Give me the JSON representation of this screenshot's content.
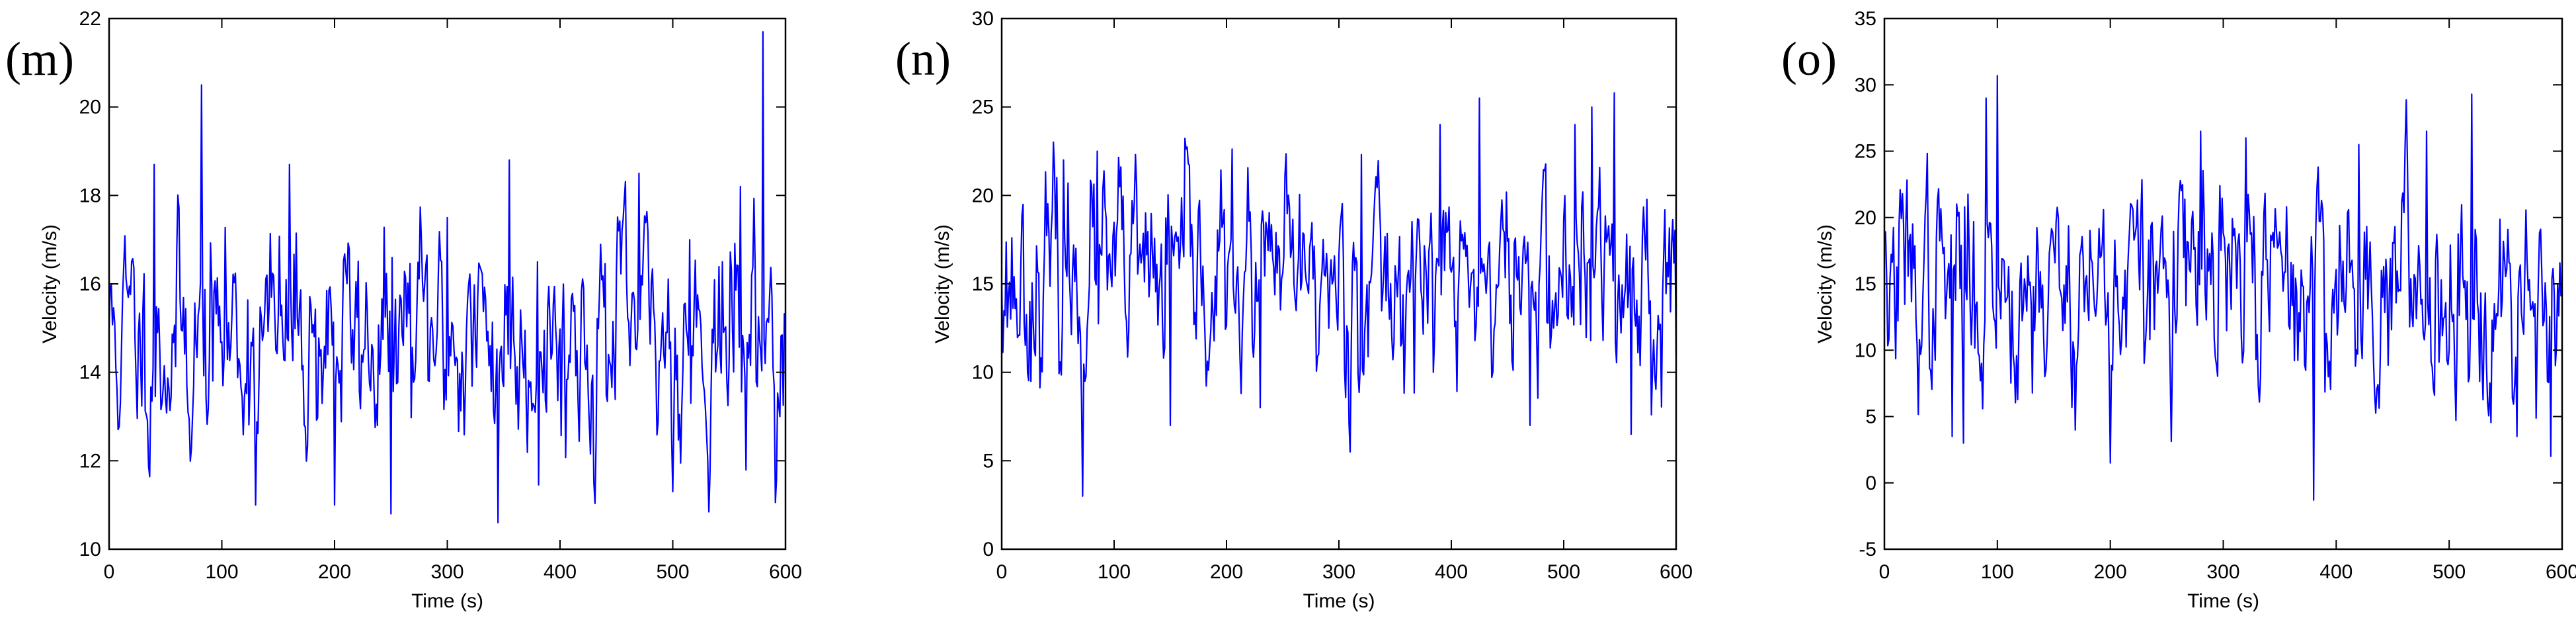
{
  "chart_data": [
    {
      "type": "line",
      "panel_label": "(m)",
      "xlabel": "Time (s)",
      "ylabel": "Velocity (m/s)",
      "xlim": [
        0,
        600
      ],
      "ylim": [
        10,
        22
      ],
      "xticks": [
        0,
        100,
        200,
        300,
        400,
        500,
        600
      ],
      "yticks": [
        10,
        12,
        14,
        16,
        18,
        20,
        22
      ],
      "line_color": "#0000ff",
      "seed": 11,
      "x_step": 1,
      "series": [
        {
          "mean": 14.8,
          "std": 1.3,
          "x": [
            0,
            40,
            82,
            130,
            160,
            200,
            210,
            250,
            300,
            345,
            355,
            380,
            470,
            500,
            515,
            560,
            580,
            600
          ],
          "y": [
            15.0,
            18.7,
            20.5,
            11.0,
            18.7,
            11.0,
            16.3,
            10.8,
            17.5,
            10.6,
            18.8,
            16.5,
            18.5,
            11.3,
            17.0,
            18.2,
            21.7,
            15.0
          ]
        }
      ]
    },
    {
      "type": "line",
      "panel_label": "(n)",
      "xlabel": "Time (s)",
      "ylabel": "Velocity (m/s)",
      "xlim": [
        0,
        600
      ],
      "ylim": [
        0,
        30
      ],
      "xticks": [
        0,
        100,
        200,
        300,
        400,
        500,
        600
      ],
      "yticks": [
        0,
        5,
        10,
        15,
        20,
        25,
        30
      ],
      "line_color": "#0000ff",
      "seed": 23,
      "x_step": 1,
      "series": [
        {
          "mean": 15.2,
          "std": 3.0,
          "x": [
            0,
            55,
            72,
            85,
            150,
            230,
            310,
            320,
            390,
            425,
            470,
            510,
            525,
            545,
            560,
            600
          ],
          "y": [
            15.0,
            22.0,
            3.0,
            22.5,
            7.0,
            8.0,
            5.5,
            22.3,
            24.0,
            25.5,
            7.0,
            24.0,
            25.0,
            25.8,
            6.5,
            11.0
          ]
        }
      ]
    },
    {
      "type": "line",
      "panel_label": "(o)",
      "xlabel": "Time (s)",
      "ylabel": "Velocity (m/s)",
      "xlim": [
        0,
        600
      ],
      "ylim": [
        -5,
        35
      ],
      "xticks": [
        0,
        100,
        200,
        300,
        400,
        500,
        600
      ],
      "yticks": [
        -5,
        0,
        5,
        10,
        15,
        20,
        25,
        30,
        35
      ],
      "line_color": "#0000ff",
      "seed": 37,
      "x_step": 1,
      "series": [
        {
          "mean": 15.0,
          "std": 4.2,
          "x": [
            0,
            60,
            70,
            90,
            100,
            200,
            280,
            320,
            380,
            420,
            480,
            520,
            560,
            590,
            600
          ],
          "y": [
            18.0,
            3.5,
            3.0,
            29.0,
            30.7,
            1.5,
            26.5,
            26.0,
            -1.3,
            25.5,
            26.5,
            29.3,
            3.5,
            2.0,
            15.0
          ]
        }
      ]
    }
  ]
}
